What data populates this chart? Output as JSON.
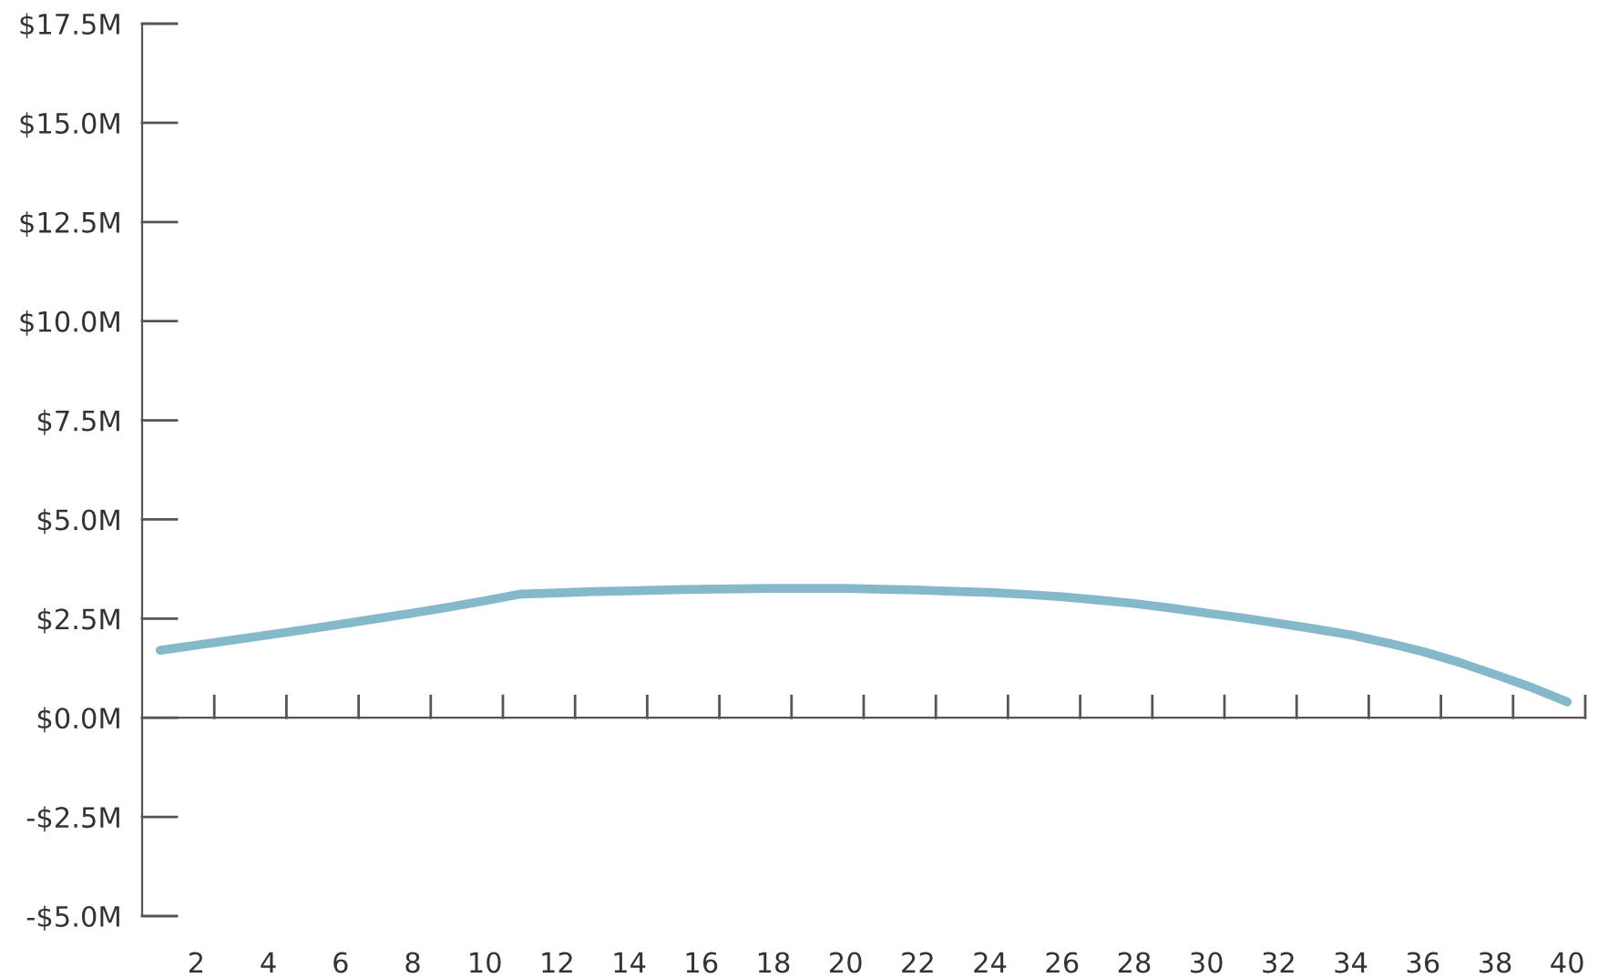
{
  "chart_data": {
    "type": "line",
    "x": [
      1,
      2,
      3,
      4,
      5,
      6,
      7,
      8,
      9,
      10,
      11,
      12,
      13,
      14,
      15,
      16,
      17,
      18,
      19,
      20,
      21,
      22,
      23,
      24,
      25,
      26,
      27,
      28,
      29,
      30,
      31,
      32,
      33,
      34,
      35,
      36,
      37,
      38,
      39,
      40
    ],
    "series": [
      {
        "color": "#86b8cb",
        "values": [
          1.7,
          1.83,
          1.96,
          2.09,
          2.22,
          2.36,
          2.5,
          2.64,
          2.79,
          2.95,
          3.12,
          3.15,
          3.18,
          3.2,
          3.22,
          3.24,
          3.25,
          3.26,
          3.26,
          3.26,
          3.24,
          3.22,
          3.19,
          3.16,
          3.11,
          3.05,
          2.97,
          2.88,
          2.77,
          2.64,
          2.52,
          2.38,
          2.24,
          2.09,
          1.89,
          1.67,
          1.4,
          1.09,
          0.77,
          0.4
        ]
      }
    ],
    "xlim": [
      0.5,
      40.5
    ],
    "xticks": [
      2,
      4,
      6,
      8,
      10,
      12,
      14,
      16,
      18,
      20,
      22,
      24,
      26,
      28,
      30,
      32,
      34,
      36,
      38,
      40,
      {
        "value": 2.5,
        "label": null
      },
      {
        "value": 4.5,
        "label": null
      },
      {
        "value": 6.5,
        "label": null
      },
      {
        "value": 8.5,
        "label": null
      },
      {
        "value": 10.5,
        "label": null
      },
      {
        "value": 12.5,
        "label": null
      },
      {
        "value": 14.5,
        "label": null
      },
      {
        "value": 16.5,
        "label": null
      },
      {
        "value": 18.5,
        "label": null
      },
      {
        "value": 20.5,
        "label": null
      },
      {
        "value": 22.5,
        "label": null
      },
      {
        "value": 24.5,
        "label": null
      },
      {
        "value": 26.5,
        "label": null
      },
      {
        "value": 28.5,
        "label": null
      },
      {
        "value": 30.5,
        "label": null
      },
      {
        "value": 32.5,
        "label": null
      },
      {
        "value": 34.5,
        "label": null
      },
      {
        "value": 36.5,
        "label": null
      },
      {
        "value": 38.5,
        "label": null
      },
      {
        "value": 40.5,
        "label": null
      }
    ],
    "ylim": [
      -5,
      17.5
    ],
    "yticks": [
      {
        "value": -5,
        "label": "-$5.0M"
      },
      {
        "value": -2.5,
        "label": "-$2.5M"
      },
      {
        "value": 0,
        "label": "$0.0M"
      },
      {
        "value": 2.5,
        "label": "$2.5M"
      },
      {
        "value": 5,
        "label": "$5.0M"
      },
      {
        "value": 7.5,
        "label": "$7.5M"
      },
      {
        "value": 10,
        "label": "$10.0M"
      },
      {
        "value": 12.5,
        "label": "$12.5M"
      },
      {
        "value": 15,
        "label": "$15.0M"
      },
      {
        "value": 17.5,
        "label": "$17.5M"
      }
    ],
    "legend": false,
    "marker": "none",
    "line_style": "solid"
  }
}
